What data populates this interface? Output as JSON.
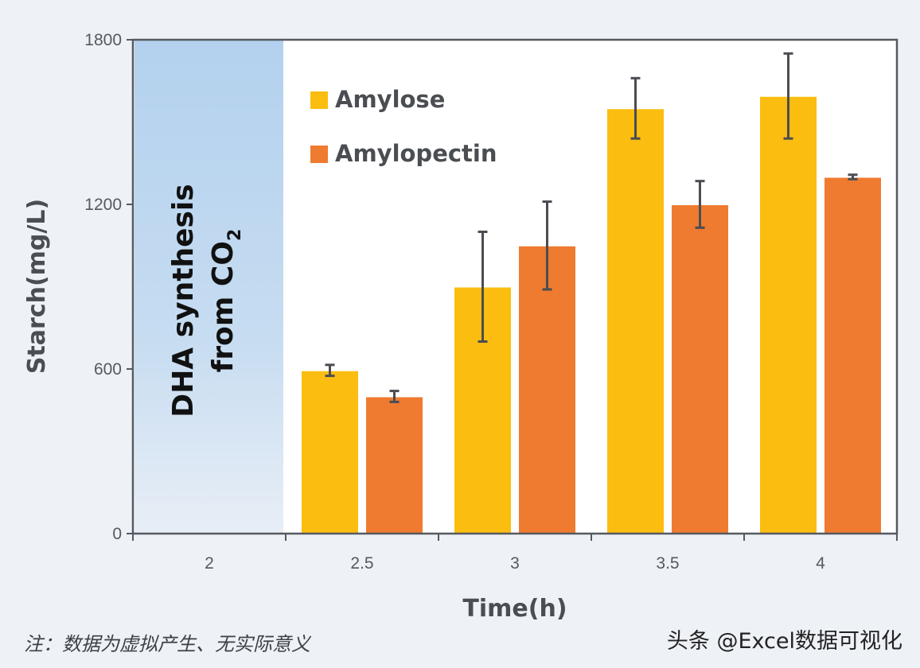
{
  "chart_data": {
    "type": "bar",
    "categories": [
      "2",
      "2.5",
      "3",
      "3.5",
      "4"
    ],
    "series": [
      {
        "name": "Amylose",
        "color": "#fbbd10",
        "values": [
          null,
          595,
          900,
          1550,
          1595
        ],
        "errors": [
          null,
          20,
          200,
          110,
          155
        ]
      },
      {
        "name": "Amylopectin",
        "color": "#ef7b30",
        "values": [
          null,
          500,
          1050,
          1200,
          1300
        ],
        "errors": [
          null,
          20,
          160,
          85,
          8
        ]
      }
    ],
    "xlabel": "Time(h)",
    "ylabel": "Starch(mg/L)",
    "ylim": [
      0,
      1800
    ],
    "yticks": [
      "0",
      "600",
      "1200",
      "1800"
    ],
    "legend_position": "top-left inside plot",
    "grid": false,
    "shaded_region": {
      "category": "2",
      "label_line1": "DHA synthesis",
      "label_line2": "from CO",
      "label_subscript": "2"
    }
  },
  "note": "注：数据为虚拟产生、无实际意义",
  "watermark": "头条 @Excel数据可视化"
}
